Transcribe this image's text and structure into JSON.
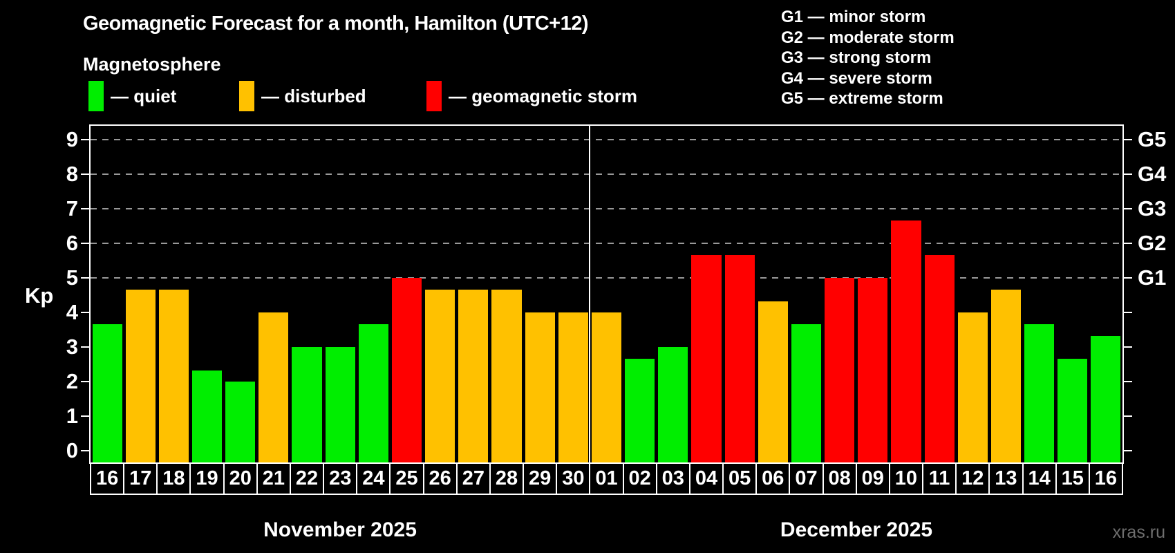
{
  "header": {
    "title": "Geomagnetic Forecast for a month, Hamilton (UTC+12)",
    "subtitle": "Magnetosphere"
  },
  "legend": {
    "items": [
      {
        "key": "quiet",
        "label": "— quiet",
        "color": "#00ee00"
      },
      {
        "key": "disturbed",
        "label": "— disturbed",
        "color": "#ffc100"
      },
      {
        "key": "storm",
        "label": "— geomagnetic storm",
        "color": "#ff0000"
      }
    ]
  },
  "storm_scale": {
    "lines": [
      "G1 — minor storm",
      "G2 — moderate storm",
      "G3 — strong storm",
      "G4 — severe storm",
      "G5 — extreme storm"
    ]
  },
  "status_colors": {
    "quiet": "#00ee00",
    "disturbed": "#ffc100",
    "storm": "#ff0000"
  },
  "watermark": "xras.ru",
  "chart_data": {
    "type": "bar",
    "title": "Geomagnetic Forecast for a month, Hamilton (UTC+12)",
    "subtitle": "Magnetosphere",
    "ylabel": "Kp",
    "ylim": [
      0,
      9.4
    ],
    "left_ticks": [
      0,
      1,
      2,
      3,
      4,
      5,
      6,
      7,
      8,
      9
    ],
    "gridlines_at": [
      5,
      6,
      7,
      8,
      9
    ],
    "right_axis": {
      "labels": [
        "G1",
        "G2",
        "G3",
        "G4",
        "G5"
      ],
      "values": [
        5,
        6,
        7,
        8,
        9
      ]
    },
    "legend_position": "top",
    "months": [
      {
        "label": "November 2025",
        "days": 15
      },
      {
        "label": "December 2025",
        "days": 16
      }
    ],
    "bars": [
      {
        "month": "November 2025",
        "day": "16",
        "value": 3.67,
        "status": "quiet"
      },
      {
        "month": "November 2025",
        "day": "17",
        "value": 4.67,
        "status": "disturbed"
      },
      {
        "month": "November 2025",
        "day": "18",
        "value": 4.67,
        "status": "disturbed"
      },
      {
        "month": "November 2025",
        "day": "19",
        "value": 2.33,
        "status": "quiet"
      },
      {
        "month": "November 2025",
        "day": "20",
        "value": 2.0,
        "status": "quiet"
      },
      {
        "month": "November 2025",
        "day": "21",
        "value": 4.0,
        "status": "disturbed"
      },
      {
        "month": "November 2025",
        "day": "22",
        "value": 3.0,
        "status": "quiet"
      },
      {
        "month": "November 2025",
        "day": "23",
        "value": 3.0,
        "status": "quiet"
      },
      {
        "month": "November 2025",
        "day": "24",
        "value": 3.67,
        "status": "quiet"
      },
      {
        "month": "November 2025",
        "day": "25",
        "value": 5.0,
        "status": "storm"
      },
      {
        "month": "November 2025",
        "day": "26",
        "value": 4.67,
        "status": "disturbed"
      },
      {
        "month": "November 2025",
        "day": "27",
        "value": 4.67,
        "status": "disturbed"
      },
      {
        "month": "November 2025",
        "day": "28",
        "value": 4.67,
        "status": "disturbed"
      },
      {
        "month": "November 2025",
        "day": "29",
        "value": 4.0,
        "status": "disturbed"
      },
      {
        "month": "November 2025",
        "day": "30",
        "value": 4.0,
        "status": "disturbed"
      },
      {
        "month": "December 2025",
        "day": "01",
        "value": 4.0,
        "status": "disturbed"
      },
      {
        "month": "December 2025",
        "day": "02",
        "value": 2.67,
        "status": "quiet"
      },
      {
        "month": "December 2025",
        "day": "03",
        "value": 3.0,
        "status": "quiet"
      },
      {
        "month": "December 2025",
        "day": "04",
        "value": 5.67,
        "status": "storm"
      },
      {
        "month": "December 2025",
        "day": "05",
        "value": 5.67,
        "status": "storm"
      },
      {
        "month": "December 2025",
        "day": "06",
        "value": 4.33,
        "status": "disturbed"
      },
      {
        "month": "December 2025",
        "day": "07",
        "value": 3.67,
        "status": "quiet"
      },
      {
        "month": "December 2025",
        "day": "08",
        "value": 5.0,
        "status": "storm"
      },
      {
        "month": "December 2025",
        "day": "09",
        "value": 5.0,
        "status": "storm"
      },
      {
        "month": "December 2025",
        "day": "10",
        "value": 6.67,
        "status": "storm"
      },
      {
        "month": "December 2025",
        "day": "11",
        "value": 5.67,
        "status": "storm"
      },
      {
        "month": "December 2025",
        "day": "12",
        "value": 4.0,
        "status": "disturbed"
      },
      {
        "month": "December 2025",
        "day": "13",
        "value": 4.67,
        "status": "disturbed"
      },
      {
        "month": "December 2025",
        "day": "14",
        "value": 3.67,
        "status": "quiet"
      },
      {
        "month": "December 2025",
        "day": "15",
        "value": 2.67,
        "status": "quiet"
      },
      {
        "month": "December 2025",
        "day": "16",
        "value": 3.33,
        "status": "quiet"
      }
    ]
  }
}
